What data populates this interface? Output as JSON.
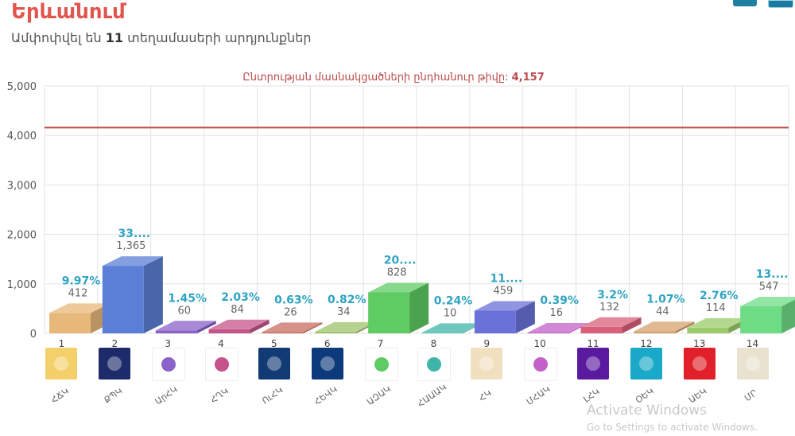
{
  "header": {
    "title": "Երևանում",
    "subtitle_prefix": "Ամփոփվել են",
    "subtitle_count": "11",
    "subtitle_suffix": "տեղամասերի արդյունքներ"
  },
  "window_buttons": [
    "minimize-button",
    "restore-button"
  ],
  "watermark": {
    "line1": "Activate Windows",
    "line2": "Go to Settings to activate Windows."
  },
  "chart_data": {
    "type": "bar",
    "title": "",
    "reference_line": {
      "label": "Ընտրության մասնակցածների ընդհանուր թիվը:",
      "value": 4157,
      "value_text": "4,157",
      "color": "#b94a4a"
    },
    "ylim": [
      0,
      5000
    ],
    "yticks": [
      "0",
      "1,000",
      "2,000",
      "3,000",
      "4,000",
      "5,000"
    ],
    "grid": true,
    "categories": [
      "1",
      "2",
      "3",
      "4",
      "5",
      "6",
      "7",
      "8",
      "9",
      "10",
      "11",
      "12",
      "13",
      "14"
    ],
    "party_names": [
      "ՀՃԿ",
      "ՔՊԿ",
      "ԱրՀԿ",
      "ՀՂԿ",
      "ՈւՀԿ",
      "ՀԵՎԿ",
      "ԱԶԱԿ",
      "ՀԱԱԱԿ",
      "ՀԿ",
      "ՄՀԱԿ",
      "ԼՀԿ",
      "ՕԵԿ",
      "ԱԵԿ",
      "ՄՐ"
    ],
    "values": [
      412,
      1365,
      60,
      84,
      26,
      34,
      828,
      10,
      459,
      16,
      132,
      44,
      114,
      547
    ],
    "value_labels": [
      "412",
      "1,365",
      "60",
      "84",
      "26",
      "34",
      "828",
      "10",
      "459",
      "16",
      "132",
      "44",
      "114",
      "547"
    ],
    "percent_labels": [
      "9.97%",
      "33....",
      "1.45%",
      "2.03%",
      "0.63%",
      "0.82%",
      "20....",
      "0.24%",
      "11....",
      "0.39%",
      "3.2%",
      "1.07%",
      "2.76%",
      "13...."
    ],
    "colors": [
      "#e8b87a",
      "#5b7fd6",
      "#8a62c9",
      "#c4548a",
      "#c86e60",
      "#9fc26b",
      "#5ecb63",
      "#3fb5a8",
      "#6a72d8",
      "#c460c9",
      "#d9607a",
      "#d6a26e",
      "#9bcb6a",
      "#6edc85"
    ],
    "logo_colors": [
      "#f4d06b",
      "#1d2b6a",
      "#ffffff",
      "#ffffff",
      "#123a74",
      "#0d3a7a",
      "#ffffff",
      "#ffffff",
      "#f0e0c0",
      "#ffffff",
      "#5a1aa0",
      "#1aa9c8",
      "#e0202a",
      "#e9e2cf"
    ],
    "logo_names": [
      "coat-of-arms-logo",
      "star-emblem-logo",
      "orange-swirl-logo",
      "blue-stripes-logo",
      "bird-emblem-logo",
      "tower-logo",
      "striped-book-logo",
      "building-logo",
      "ornament-logo",
      "ur-logo",
      "purple-box-logo",
      "teal-waves-logo",
      "red-dots-logo",
      "people-photo-logo"
    ]
  }
}
